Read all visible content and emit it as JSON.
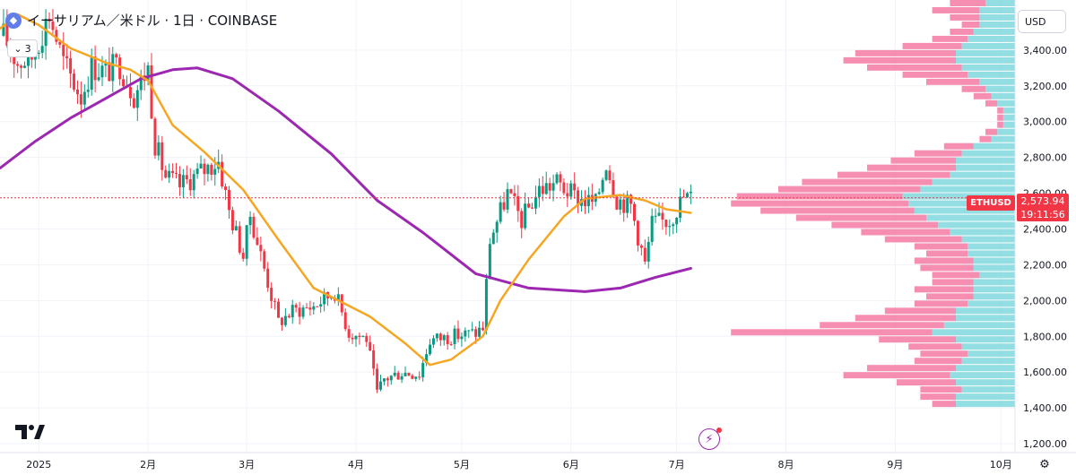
{
  "header": {
    "title": "イーサリアム／米ドル · 1日 · COINBASE",
    "indicator_count": "3",
    "currency": "USD"
  },
  "last_price": {
    "symbol": "ETHUSD",
    "price": "2,573.94",
    "countdown": "19:11:56",
    "value": 2573.94
  },
  "colors": {
    "up": "#089981",
    "down": "#f23645",
    "ma_short": "#f5a623",
    "ma_long": "#9c27b0",
    "vp_up": "#7fd8dd",
    "vp_down": "#f57aa3",
    "grid": "#f0f3fa",
    "axis_text": "#131722"
  },
  "icons": {
    "symbol_logo": "ethereum-icon",
    "chevron": "chevron-down-icon",
    "brand": "tradingview-logo-icon",
    "flash": "lightning-icon",
    "settings": "gear-icon"
  },
  "chart_data": {
    "type": "candlestick",
    "title": "イーサリアム／米ドル · 1日 · COINBASE",
    "y_axis": {
      "ylim": [
        1150,
        3680
      ],
      "ticks": [
        1200,
        1400,
        1600,
        1800,
        2000,
        2200,
        2400,
        2600,
        2800,
        3000,
        3200,
        3400
      ],
      "tick_labels": [
        "1,200.00",
        "1,400.00",
        "1,600.00",
        "1,800.00",
        "2,000.00",
        "2,200.00",
        "2,400.00",
        "2,600.00",
        "2,800.00",
        "3,000.00",
        "3,200.00",
        "3,400.00"
      ]
    },
    "x_axis": {
      "start_date": "2024-12-21",
      "end_date": "2025-10-05",
      "ticks": [
        {
          "date": "2025-01-01",
          "label": "2025"
        },
        {
          "date": "2025-02-01",
          "label": "2月"
        },
        {
          "date": "2025-03-01",
          "label": "3月"
        },
        {
          "date": "2025-04-01",
          "label": "4月"
        },
        {
          "date": "2025-05-01",
          "label": "5月"
        },
        {
          "date": "2025-06-01",
          "label": "6月"
        },
        {
          "date": "2025-07-01",
          "label": "7月"
        },
        {
          "date": "2025-08-01",
          "label": "8月"
        },
        {
          "date": "2025-09-01",
          "label": "9月"
        },
        {
          "date": "2025-10-01",
          "label": "10月"
        }
      ]
    },
    "price_path": [
      [
        "2024-12-22",
        3480
      ],
      [
        "2024-12-26",
        3330
      ],
      [
        "2024-12-30",
        3360
      ],
      [
        "2025-01-04",
        3600
      ],
      [
        "2025-01-08",
        3330
      ],
      [
        "2025-01-13",
        3140
      ],
      [
        "2025-01-16",
        3310
      ],
      [
        "2025-01-20",
        3280
      ],
      [
        "2025-01-24",
        3320
      ],
      [
        "2025-01-28",
        3150
      ],
      [
        "2025-02-01",
        3300
      ],
      [
        "2025-02-03",
        2880
      ],
      [
        "2025-02-06",
        2690
      ],
      [
        "2025-02-10",
        2640
      ],
      [
        "2025-02-16",
        2720
      ],
      [
        "2025-02-21",
        2780
      ],
      [
        "2025-02-24",
        2500
      ],
      [
        "2025-02-28",
        2250
      ],
      [
        "2025-03-02",
        2480
      ],
      [
        "2025-03-06",
        2180
      ],
      [
        "2025-03-10",
        1880
      ],
      [
        "2025-03-14",
        1940
      ],
      [
        "2025-03-20",
        1970
      ],
      [
        "2025-03-26",
        2050
      ],
      [
        "2025-03-30",
        1820
      ],
      [
        "2025-04-04",
        1790
      ],
      [
        "2025-04-07",
        1480
      ],
      [
        "2025-04-09",
        1560
      ],
      [
        "2025-04-14",
        1600
      ],
      [
        "2025-04-19",
        1590
      ],
      [
        "2025-04-22",
        1780
      ],
      [
        "2025-04-28",
        1800
      ],
      [
        "2025-05-05",
        1820
      ],
      [
        "2025-05-07",
        1850
      ],
      [
        "2025-05-09",
        2340
      ],
      [
        "2025-05-14",
        2600
      ],
      [
        "2025-05-18",
        2450
      ],
      [
        "2025-05-23",
        2620
      ],
      [
        "2025-05-28",
        2660
      ],
      [
        "2025-06-02",
        2580
      ],
      [
        "2025-06-08",
        2540
      ],
      [
        "2025-06-11",
        2780
      ],
      [
        "2025-06-14",
        2570
      ],
      [
        "2025-06-18",
        2530
      ],
      [
        "2025-06-22",
        2200
      ],
      [
        "2025-06-24",
        2430
      ],
      [
        "2025-06-29",
        2450
      ],
      [
        "2025-07-03",
        2580
      ],
      [
        "2025-07-05",
        2573.94
      ]
    ],
    "moving_average_short": {
      "points": [
        [
          "2024-12-21",
          3520
        ],
        [
          "2024-12-26",
          3600
        ],
        [
          "2025-01-01",
          3540
        ],
        [
          "2025-01-10",
          3410
        ],
        [
          "2025-01-20",
          3330
        ],
        [
          "2025-01-27",
          3290
        ],
        [
          "2025-02-01",
          3230
        ],
        [
          "2025-02-08",
          2980
        ],
        [
          "2025-02-17",
          2830
        ],
        [
          "2025-02-28",
          2620
        ],
        [
          "2025-03-10",
          2340
        ],
        [
          "2025-03-20",
          2070
        ],
        [
          "2025-03-28",
          1990
        ],
        [
          "2025-04-05",
          1910
        ],
        [
          "2025-04-15",
          1760
        ],
        [
          "2025-04-22",
          1640
        ],
        [
          "2025-04-28",
          1670
        ],
        [
          "2025-05-07",
          1800
        ],
        [
          "2025-05-12",
          2000
        ],
        [
          "2025-05-20",
          2230
        ],
        [
          "2025-05-30",
          2470
        ],
        [
          "2025-06-05",
          2570
        ],
        [
          "2025-06-15",
          2590
        ],
        [
          "2025-06-22",
          2560
        ],
        [
          "2025-06-28",
          2510
        ],
        [
          "2025-07-05",
          2490
        ]
      ]
    },
    "moving_average_long": {
      "points": [
        [
          "2024-12-21",
          2740
        ],
        [
          "2024-12-31",
          2890
        ],
        [
          "2025-01-10",
          3020
        ],
        [
          "2025-01-20",
          3130
        ],
        [
          "2025-01-30",
          3240
        ],
        [
          "2025-02-08",
          3290
        ],
        [
          "2025-02-15",
          3300
        ],
        [
          "2025-02-25",
          3240
        ],
        [
          "2025-03-10",
          3060
        ],
        [
          "2025-03-25",
          2820
        ],
        [
          "2025-04-07",
          2560
        ],
        [
          "2025-04-20",
          2380
        ],
        [
          "2025-05-05",
          2150
        ],
        [
          "2025-05-20",
          2070
        ],
        [
          "2025-06-05",
          2050
        ],
        [
          "2025-06-15",
          2070
        ],
        [
          "2025-06-25",
          2130
        ],
        [
          "2025-07-05",
          2180
        ]
      ]
    },
    "volume_profile": {
      "bins": [
        [
          1400,
          10,
          4
        ],
        [
          1440,
          10,
          6
        ],
        [
          1480,
          9,
          7
        ],
        [
          1520,
          10,
          10
        ],
        [
          1560,
          11,
          18
        ],
        [
          1600,
          10,
          15
        ],
        [
          1640,
          9,
          8
        ],
        [
          1680,
          8,
          8
        ],
        [
          1720,
          9,
          9
        ],
        [
          1760,
          10,
          13
        ],
        [
          1800,
          14,
          34
        ],
        [
          1840,
          12,
          21
        ],
        [
          1880,
          10,
          17
        ],
        [
          1920,
          10,
          12
        ],
        [
          1960,
          8,
          9
        ],
        [
          2000,
          7,
          8
        ],
        [
          2040,
          7,
          10
        ],
        [
          2080,
          7,
          7
        ],
        [
          2120,
          6,
          8
        ],
        [
          2160,
          7,
          9
        ],
        [
          2200,
          7,
          10
        ],
        [
          2240,
          8,
          7
        ],
        [
          2280,
          8,
          9
        ],
        [
          2320,
          9,
          13
        ],
        [
          2360,
          11,
          15
        ],
        [
          2400,
          13,
          18
        ],
        [
          2440,
          15,
          22
        ],
        [
          2480,
          17,
          26
        ],
        [
          2520,
          18,
          30
        ],
        [
          2560,
          19,
          28
        ],
        [
          2600,
          16,
          24
        ],
        [
          2640,
          14,
          22
        ],
        [
          2680,
          11,
          19
        ],
        [
          2720,
          10,
          15
        ],
        [
          2760,
          10,
          11
        ],
        [
          2800,
          9,
          8
        ],
        [
          2840,
          7,
          5
        ],
        [
          2880,
          4,
          2
        ],
        [
          2920,
          3,
          2
        ],
        [
          2960,
          2,
          1
        ],
        [
          3000,
          2,
          1
        ],
        [
          3040,
          2,
          1
        ],
        [
          3080,
          3,
          2
        ],
        [
          3120,
          4,
          3
        ],
        [
          3160,
          5,
          4
        ],
        [
          3200,
          6,
          9
        ],
        [
          3240,
          8,
          11
        ],
        [
          3280,
          9,
          16
        ],
        [
          3320,
          10,
          19
        ],
        [
          3360,
          10,
          17
        ],
        [
          3400,
          9,
          10
        ],
        [
          3440,
          8,
          6
        ],
        [
          3480,
          7,
          4
        ],
        [
          3520,
          6,
          3
        ],
        [
          3560,
          6,
          5
        ],
        [
          3600,
          6,
          8
        ],
        [
          3640,
          5,
          6
        ]
      ]
    }
  }
}
